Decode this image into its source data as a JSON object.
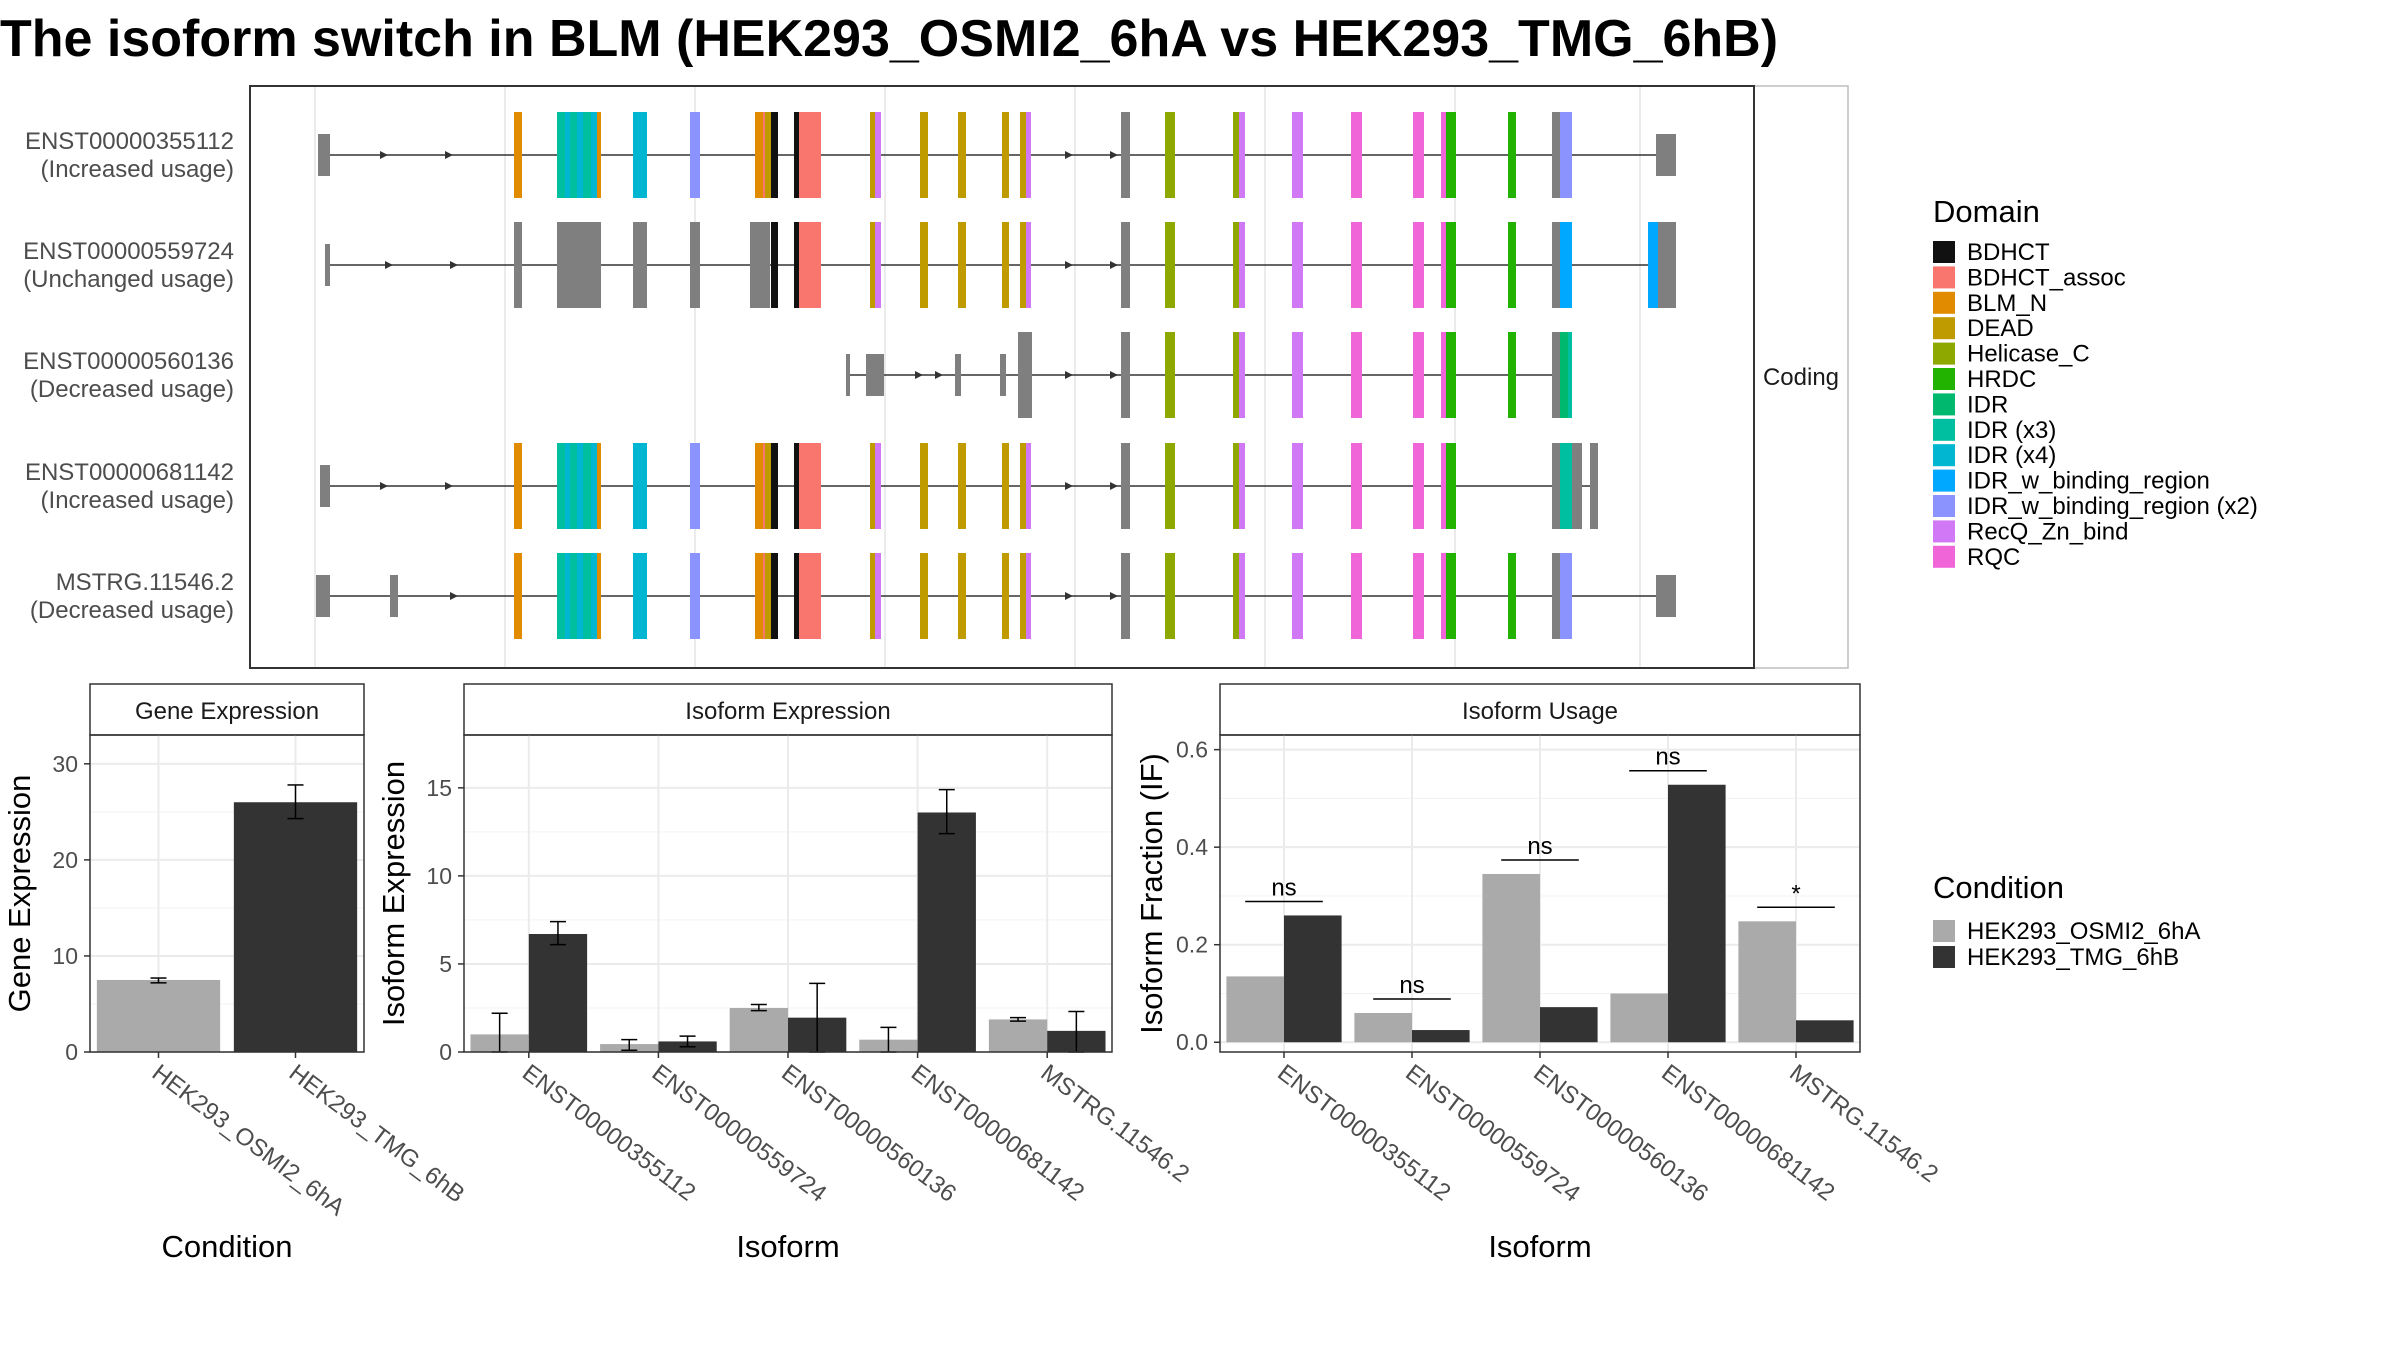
{
  "title": "The isoform switch in BLM (HEK293_OSMI2_6hA vs HEK293_TMG_6hB)",
  "transcript_panel": {
    "facet_label": "Coding",
    "isoforms": [
      {
        "id": "ENST00000355112",
        "usage": "(Increased usage)"
      },
      {
        "id": "ENST00000559724",
        "usage": "(Unchanged usage)"
      },
      {
        "id": "ENST00000560136",
        "usage": "(Decreased usage)"
      },
      {
        "id": "ENST00000681142",
        "usage": "(Increased usage)"
      },
      {
        "id": "MSTRG.11546.2",
        "usage": "(Decreased usage)"
      }
    ]
  },
  "domain_legend": {
    "title": "Domain",
    "entries": [
      {
        "name": "BDHCT",
        "color": "#111111"
      },
      {
        "name": "BDHCT_assoc",
        "color": "#F8766D"
      },
      {
        "name": "BLM_N",
        "color": "#E08B00"
      },
      {
        "name": "DEAD",
        "color": "#C09B00"
      },
      {
        "name": "Helicase_C",
        "color": "#8EA800"
      },
      {
        "name": "HRDC",
        "color": "#22B200"
      },
      {
        "name": "IDR",
        "color": "#00B96F"
      },
      {
        "name": "IDR (x3)",
        "color": "#00BFA0"
      },
      {
        "name": "IDR (x4)",
        "color": "#00B6D0"
      },
      {
        "name": "IDR_w_binding_region",
        "color": "#00A9FF"
      },
      {
        "name": "IDR_w_binding_region (x2)",
        "color": "#8B93FF"
      },
      {
        "name": "RecQ_Zn_bind",
        "color": "#D078F6"
      },
      {
        "name": "RQC",
        "color": "#F065D8"
      }
    ]
  },
  "condition_legend": {
    "title": "Condition",
    "entries": [
      {
        "name": "HEK293_OSMI2_6hA",
        "color": "#AAAAAA"
      },
      {
        "name": "HEK293_TMG_6hB",
        "color": "#333333"
      }
    ]
  },
  "chart_data": [
    {
      "type": "bar",
      "title": "Gene Expression",
      "xlabel": "Condition",
      "ylabel": "Gene Expression",
      "categories": [
        "HEK293_OSMI2_6hA",
        "HEK293_TMG_6hB"
      ],
      "values": [
        7.5,
        26.0
      ],
      "errors": [
        [
          7.2,
          7.7
        ],
        [
          24.3,
          27.8
        ]
      ],
      "ylim": [
        0,
        33
      ],
      "yticks": [
        0,
        10,
        20,
        30
      ]
    },
    {
      "type": "bar",
      "title": "Isoform Expression",
      "xlabel": "Isoform",
      "ylabel": "Isoform Expression",
      "categories": [
        "ENST00000355112",
        "ENST00000559724",
        "ENST00000560136",
        "ENST00000681142",
        "MSTRG.11546.2"
      ],
      "series": [
        {
          "name": "HEK293_OSMI2_6hA",
          "values": [
            1.0,
            0.45,
            2.5,
            0.7,
            1.85
          ],
          "errors": [
            [
              0.0,
              2.2
            ],
            [
              0.1,
              0.7
            ],
            [
              2.35,
              2.7
            ],
            [
              0.0,
              1.4
            ],
            [
              1.75,
              1.95
            ]
          ]
        },
        {
          "name": "HEK293_TMG_6hB",
          "values": [
            6.7,
            0.6,
            1.95,
            13.6,
            1.2
          ],
          "errors": [
            [
              6.1,
              7.4
            ],
            [
              0.3,
              0.9
            ],
            [
              0.0,
              3.9
            ],
            [
              12.4,
              14.9
            ],
            [
              0.0,
              2.3
            ]
          ]
        }
      ],
      "ylim": [
        0,
        18
      ],
      "yticks": [
        0,
        5,
        10,
        15
      ]
    },
    {
      "type": "bar",
      "title": "Isoform Usage",
      "xlabel": "Isoform",
      "ylabel": "Isoform Fraction (IF)",
      "categories": [
        "ENST00000355112",
        "ENST00000559724",
        "ENST00000560136",
        "ENST00000681142",
        "MSTRG.11546.2"
      ],
      "series": [
        {
          "name": "HEK293_OSMI2_6hA",
          "values": [
            0.135,
            0.06,
            0.345,
            0.1,
            0.248
          ]
        },
        {
          "name": "HEK293_TMG_6hB",
          "values": [
            0.26,
            0.025,
            0.072,
            0.528,
            0.045
          ]
        }
      ],
      "significance": [
        "ns",
        "ns",
        "ns",
        "ns",
        "*"
      ],
      "ylim": [
        -0.02,
        0.63
      ],
      "yticks": [
        0.0,
        0.2,
        0.4,
        0.6
      ],
      "ytick_labels": [
        "0.0",
        "0.2",
        "0.4",
        "0.6"
      ]
    }
  ]
}
